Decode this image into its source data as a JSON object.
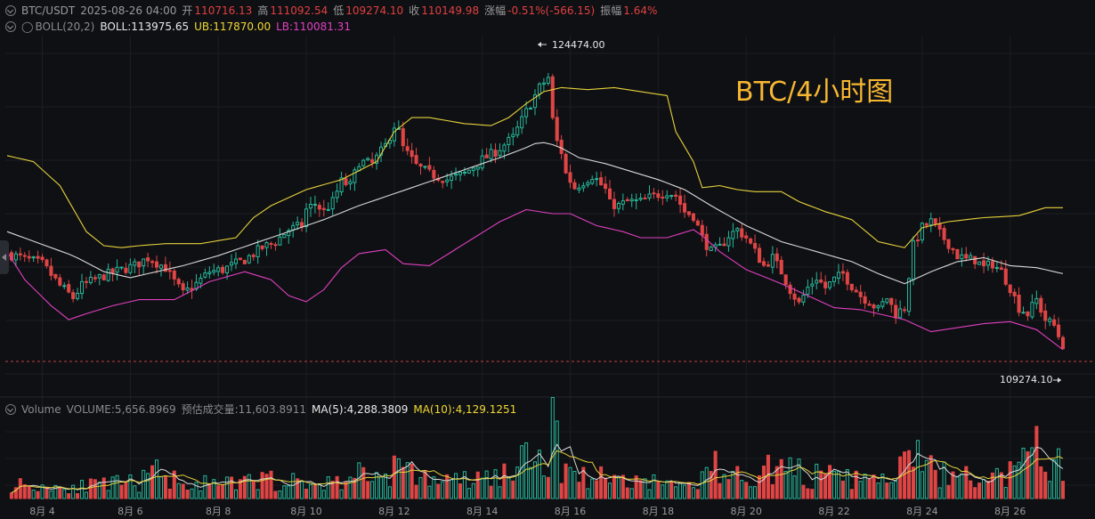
{
  "header": {
    "symbol": "BTC/USDT",
    "datetime": "2025-08-26 04:00",
    "open_label": "开",
    "open": "110716.13",
    "high_label": "高",
    "high": "111092.54",
    "low_label": "低",
    "low": "109274.10",
    "close_label": "收",
    "close": "110149.98",
    "change_label": "涨幅",
    "change": "-0.51%(-566.15)",
    "amp_label": "振幅",
    "amp": "1.64%"
  },
  "boll": {
    "icon": "bell-icon",
    "label": "BOLL(20,2)",
    "mid": "BOLL:113975.65",
    "ub": "UB:117870.00",
    "lb": "LB:110081.31"
  },
  "volume": {
    "label": "Volume",
    "vol": "VOLUME:5,656.8969",
    "est": "预估成交量:11,603.8911",
    "ma5": "MA(5):4,288.3809",
    "ma10": "MA(10):4,129.1251"
  },
  "watermark": "BTC/4小时图",
  "colors": {
    "up": "#26b89a",
    "down": "#e04545",
    "mid": "#d8d8d8",
    "ub": "#e6d23a",
    "lb": "#e040c0",
    "ma5": "#d8d8d8",
    "ma10": "#e6d23a"
  },
  "chart_data": {
    "type": "candlestick",
    "x_ticks": [
      "8月 4",
      "8月 6",
      "8月 8",
      "8月 10",
      "8月 12",
      "8月 14",
      "8月 16",
      "8月 18",
      "8月 20",
      "8月 22",
      "8月 24",
      "8月 26"
    ],
    "annotations": {
      "high_price": "124474.00",
      "last_price": "109274.10"
    },
    "ylim": [
      108000,
      125800
    ],
    "close_path": [
      [
        0,
        114900
      ],
      [
        8,
        114400
      ],
      [
        12,
        113300
      ],
      [
        15,
        112700
      ],
      [
        17,
        113300
      ],
      [
        22,
        113800
      ],
      [
        26,
        114100
      ],
      [
        29,
        114300
      ],
      [
        32,
        114700
      ],
      [
        36,
        114200
      ],
      [
        38,
        113500
      ],
      [
        40,
        112900
      ],
      [
        43,
        113400
      ],
      [
        46,
        114000
      ],
      [
        49,
        114100
      ],
      [
        51,
        114300
      ],
      [
        54,
        114600
      ],
      [
        58,
        115200
      ],
      [
        61,
        115500
      ],
      [
        64,
        116100
      ],
      [
        67,
        116300
      ],
      [
        68,
        117100
      ],
      [
        70,
        117400
      ],
      [
        72,
        117000
      ],
      [
        74,
        117500
      ],
      [
        76,
        118500
      ],
      [
        78,
        118300
      ],
      [
        80,
        119500
      ],
      [
        83,
        119400
      ],
      [
        86,
        120300
      ],
      [
        88,
        121300
      ],
      [
        89,
        121000
      ],
      [
        90,
        120200
      ],
      [
        93,
        119300
      ],
      [
        96,
        118900
      ],
      [
        100,
        118600
      ],
      [
        104,
        118900
      ],
      [
        108,
        119600
      ],
      [
        111,
        120000
      ],
      [
        115,
        120700
      ],
      [
        118,
        122000
      ],
      [
        121,
        123200
      ],
      [
        123,
        123700
      ],
      [
        124,
        121600
      ],
      [
        125,
        120500
      ],
      [
        126,
        120000
      ],
      [
        127,
        118900
      ],
      [
        129,
        118200
      ],
      [
        131,
        118500
      ],
      [
        133,
        118800
      ],
      [
        134,
        118600
      ],
      [
        136,
        118100
      ],
      [
        137,
        117400
      ],
      [
        139,
        117300
      ],
      [
        141,
        117500
      ],
      [
        144,
        117500
      ],
      [
        147,
        117800
      ],
      [
        150,
        118000
      ],
      [
        152,
        117800
      ],
      [
        154,
        117000
      ],
      [
        156,
        116800
      ],
      [
        158,
        115700
      ],
      [
        160,
        115000
      ],
      [
        162,
        115200
      ],
      [
        164,
        115800
      ],
      [
        166,
        116100
      ],
      [
        168,
        115700
      ],
      [
        170,
        115000
      ],
      [
        172,
        114300
      ],
      [
        174,
        114700
      ],
      [
        176,
        114000
      ],
      [
        178,
        113100
      ],
      [
        180,
        112400
      ],
      [
        182,
        113200
      ],
      [
        184,
        113700
      ],
      [
        186,
        113200
      ],
      [
        188,
        113600
      ],
      [
        190,
        113900
      ],
      [
        192,
        113300
      ],
      [
        194,
        112800
      ],
      [
        196,
        112500
      ],
      [
        198,
        112100
      ],
      [
        200,
        112700
      ],
      [
        202,
        111900
      ],
      [
        204,
        112200
      ],
      [
        205,
        113800
      ],
      [
        206,
        115300
      ],
      [
        208,
        116200
      ],
      [
        210,
        116500
      ],
      [
        212,
        115900
      ],
      [
        214,
        115400
      ],
      [
        216,
        114800
      ],
      [
        218,
        114600
      ],
      [
        220,
        114600
      ],
      [
        222,
        114200
      ],
      [
        224,
        114400
      ],
      [
        226,
        114000
      ],
      [
        228,
        113200
      ],
      [
        230,
        112200
      ],
      [
        232,
        111900
      ],
      [
        234,
        112600
      ],
      [
        236,
        111600
      ],
      [
        238,
        111300
      ],
      [
        239,
        110800
      ],
      [
        240,
        110150
      ]
    ],
    "boll_mid": [
      [
        0,
        116000
      ],
      [
        15,
        114800
      ],
      [
        22,
        114000
      ],
      [
        28,
        113700
      ],
      [
        34,
        114000
      ],
      [
        40,
        114300
      ],
      [
        48,
        114800
      ],
      [
        56,
        115400
      ],
      [
        64,
        116000
      ],
      [
        72,
        116600
      ],
      [
        80,
        117300
      ],
      [
        88,
        117900
      ],
      [
        96,
        118500
      ],
      [
        104,
        119100
      ],
      [
        112,
        119700
      ],
      [
        118,
        120200
      ],
      [
        121,
        120500
      ],
      [
        125,
        120300
      ],
      [
        130,
        119700
      ],
      [
        136,
        119400
      ],
      [
        142,
        119000
      ],
      [
        148,
        118600
      ],
      [
        154,
        118100
      ],
      [
        160,
        117300
      ],
      [
        168,
        116300
      ],
      [
        176,
        115500
      ],
      [
        184,
        115000
      ],
      [
        192,
        114500
      ],
      [
        198,
        113900
      ],
      [
        204,
        113400
      ],
      [
        210,
        114000
      ],
      [
        216,
        114500
      ],
      [
        222,
        114700
      ],
      [
        228,
        114300
      ],
      [
        234,
        114200
      ],
      [
        240,
        113900
      ]
    ],
    "boll_ub": [
      [
        0,
        119800
      ],
      [
        6,
        119500
      ],
      [
        12,
        118300
      ],
      [
        18,
        116000
      ],
      [
        22,
        115300
      ],
      [
        26,
        115200
      ],
      [
        30,
        115300
      ],
      [
        36,
        115400
      ],
      [
        44,
        115400
      ],
      [
        52,
        115700
      ],
      [
        56,
        116700
      ],
      [
        60,
        117300
      ],
      [
        68,
        118100
      ],
      [
        76,
        118600
      ],
      [
        84,
        119500
      ],
      [
        88,
        121000
      ],
      [
        92,
        121700
      ],
      [
        96,
        121700
      ],
      [
        104,
        121400
      ],
      [
        110,
        121300
      ],
      [
        114,
        121700
      ],
      [
        118,
        122400
      ],
      [
        122,
        123000
      ],
      [
        126,
        123200
      ],
      [
        132,
        123100
      ],
      [
        138,
        123200
      ],
      [
        144,
        123000
      ],
      [
        150,
        122800
      ],
      [
        152,
        121000
      ],
      [
        156,
        119500
      ],
      [
        158,
        118200
      ],
      [
        162,
        118300
      ],
      [
        166,
        118100
      ],
      [
        170,
        118000
      ],
      [
        176,
        118000
      ],
      [
        180,
        117500
      ],
      [
        186,
        117000
      ],
      [
        192,
        116600
      ],
      [
        198,
        115500
      ],
      [
        204,
        115200
      ],
      [
        208,
        116200
      ],
      [
        214,
        116500
      ],
      [
        222,
        116700
      ],
      [
        230,
        116800
      ],
      [
        236,
        117200
      ],
      [
        240,
        117200
      ]
    ],
    "boll_lb": [
      [
        0,
        115000
      ],
      [
        4,
        113600
      ],
      [
        10,
        112300
      ],
      [
        14,
        111600
      ],
      [
        18,
        111900
      ],
      [
        24,
        112300
      ],
      [
        30,
        112600
      ],
      [
        38,
        112600
      ],
      [
        46,
        113500
      ],
      [
        54,
        114000
      ],
      [
        60,
        113600
      ],
      [
        64,
        112800
      ],
      [
        68,
        112500
      ],
      [
        72,
        113100
      ],
      [
        76,
        114200
      ],
      [
        80,
        114900
      ],
      [
        86,
        115100
      ],
      [
        90,
        114400
      ],
      [
        96,
        114300
      ],
      [
        104,
        115400
      ],
      [
        112,
        116500
      ],
      [
        118,
        117100
      ],
      [
        124,
        116900
      ],
      [
        128,
        116900
      ],
      [
        134,
        116300
      ],
      [
        140,
        116000
      ],
      [
        144,
        115700
      ],
      [
        150,
        115700
      ],
      [
        156,
        116100
      ],
      [
        158,
        115800
      ],
      [
        162,
        115000
      ],
      [
        168,
        114100
      ],
      [
        176,
        113400
      ],
      [
        182,
        112800
      ],
      [
        188,
        112200
      ],
      [
        194,
        112100
      ],
      [
        198,
        111900
      ],
      [
        204,
        111600
      ],
      [
        210,
        111000
      ],
      [
        216,
        111200
      ],
      [
        222,
        111400
      ],
      [
        228,
        111500
      ],
      [
        234,
        111100
      ],
      [
        240,
        110100
      ]
    ],
    "volume_ylim": [
      0,
      3500
    ],
    "volume_profile": [
      [
        0,
        700
      ],
      [
        10,
        550
      ],
      [
        20,
        600
      ],
      [
        30,
        750
      ],
      [
        34,
        1200
      ],
      [
        40,
        800
      ],
      [
        48,
        600
      ],
      [
        56,
        800
      ],
      [
        60,
        900
      ],
      [
        68,
        650
      ],
      [
        76,
        800
      ],
      [
        80,
        1200
      ],
      [
        84,
        1000
      ],
      [
        88,
        1500
      ],
      [
        92,
        1100
      ],
      [
        100,
        800
      ],
      [
        108,
        900
      ],
      [
        114,
        1200
      ],
      [
        118,
        1700
      ],
      [
        122,
        1900
      ],
      [
        124,
        3000
      ],
      [
        126,
        1800
      ],
      [
        130,
        1100
      ],
      [
        136,
        1000
      ],
      [
        142,
        900
      ],
      [
        150,
        700
      ],
      [
        156,
        600
      ],
      [
        160,
        1600
      ],
      [
        164,
        1000
      ],
      [
        170,
        1200
      ],
      [
        176,
        1500
      ],
      [
        180,
        1200
      ],
      [
        186,
        1000
      ],
      [
        192,
        900
      ],
      [
        198,
        800
      ],
      [
        204,
        1400
      ],
      [
        206,
        2900
      ],
      [
        208,
        1400
      ],
      [
        214,
        1100
      ],
      [
        220,
        900
      ],
      [
        226,
        1000
      ],
      [
        230,
        1300
      ],
      [
        234,
        2300
      ],
      [
        236,
        1800
      ],
      [
        240,
        1500
      ]
    ]
  }
}
